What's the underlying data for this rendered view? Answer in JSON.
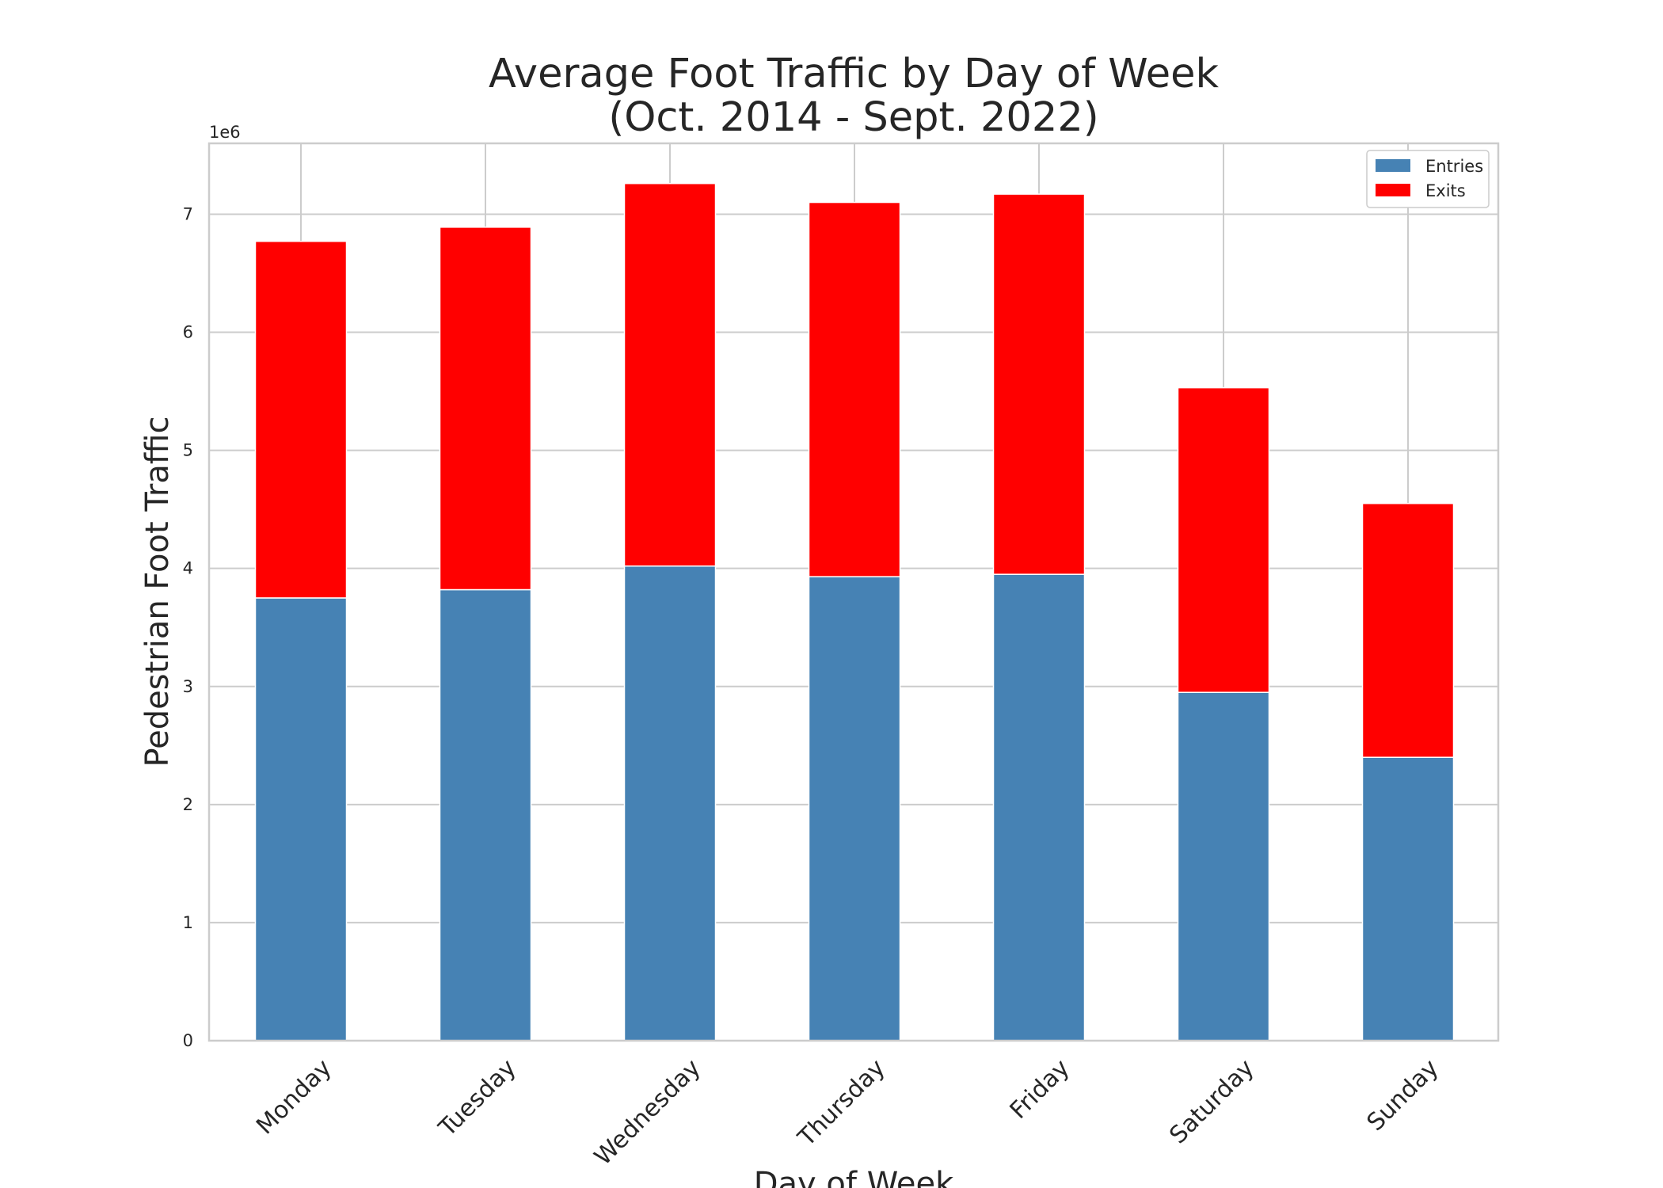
{
  "chart_data": {
    "type": "bar",
    "stacked": true,
    "title": "Average Foot Traffic by Day of Week",
    "subtitle": "(Oct. 2014 - Sept. 2022)",
    "xlabel": "Day of Week",
    "ylabel": "Pedestrian Foot Traffic",
    "y_offset_text": "1e6",
    "ylim": [
      0,
      7.6
    ],
    "yticks": [
      0,
      1,
      2,
      3,
      4,
      5,
      6,
      7
    ],
    "grid": true,
    "legend_position": "top-right",
    "categories": [
      "Monday",
      "Tuesday",
      "Wednesday",
      "Thursday",
      "Friday",
      "Saturday",
      "Sunday"
    ],
    "series": [
      {
        "name": "Entries",
        "color": "#4682b4",
        "values": [
          3.75,
          3.82,
          4.02,
          3.93,
          3.95,
          2.95,
          2.4
        ]
      },
      {
        "name": "Exits",
        "color": "#ff0000",
        "values": [
          3.02,
          3.07,
          3.24,
          3.17,
          3.22,
          2.58,
          2.15
        ]
      }
    ]
  }
}
